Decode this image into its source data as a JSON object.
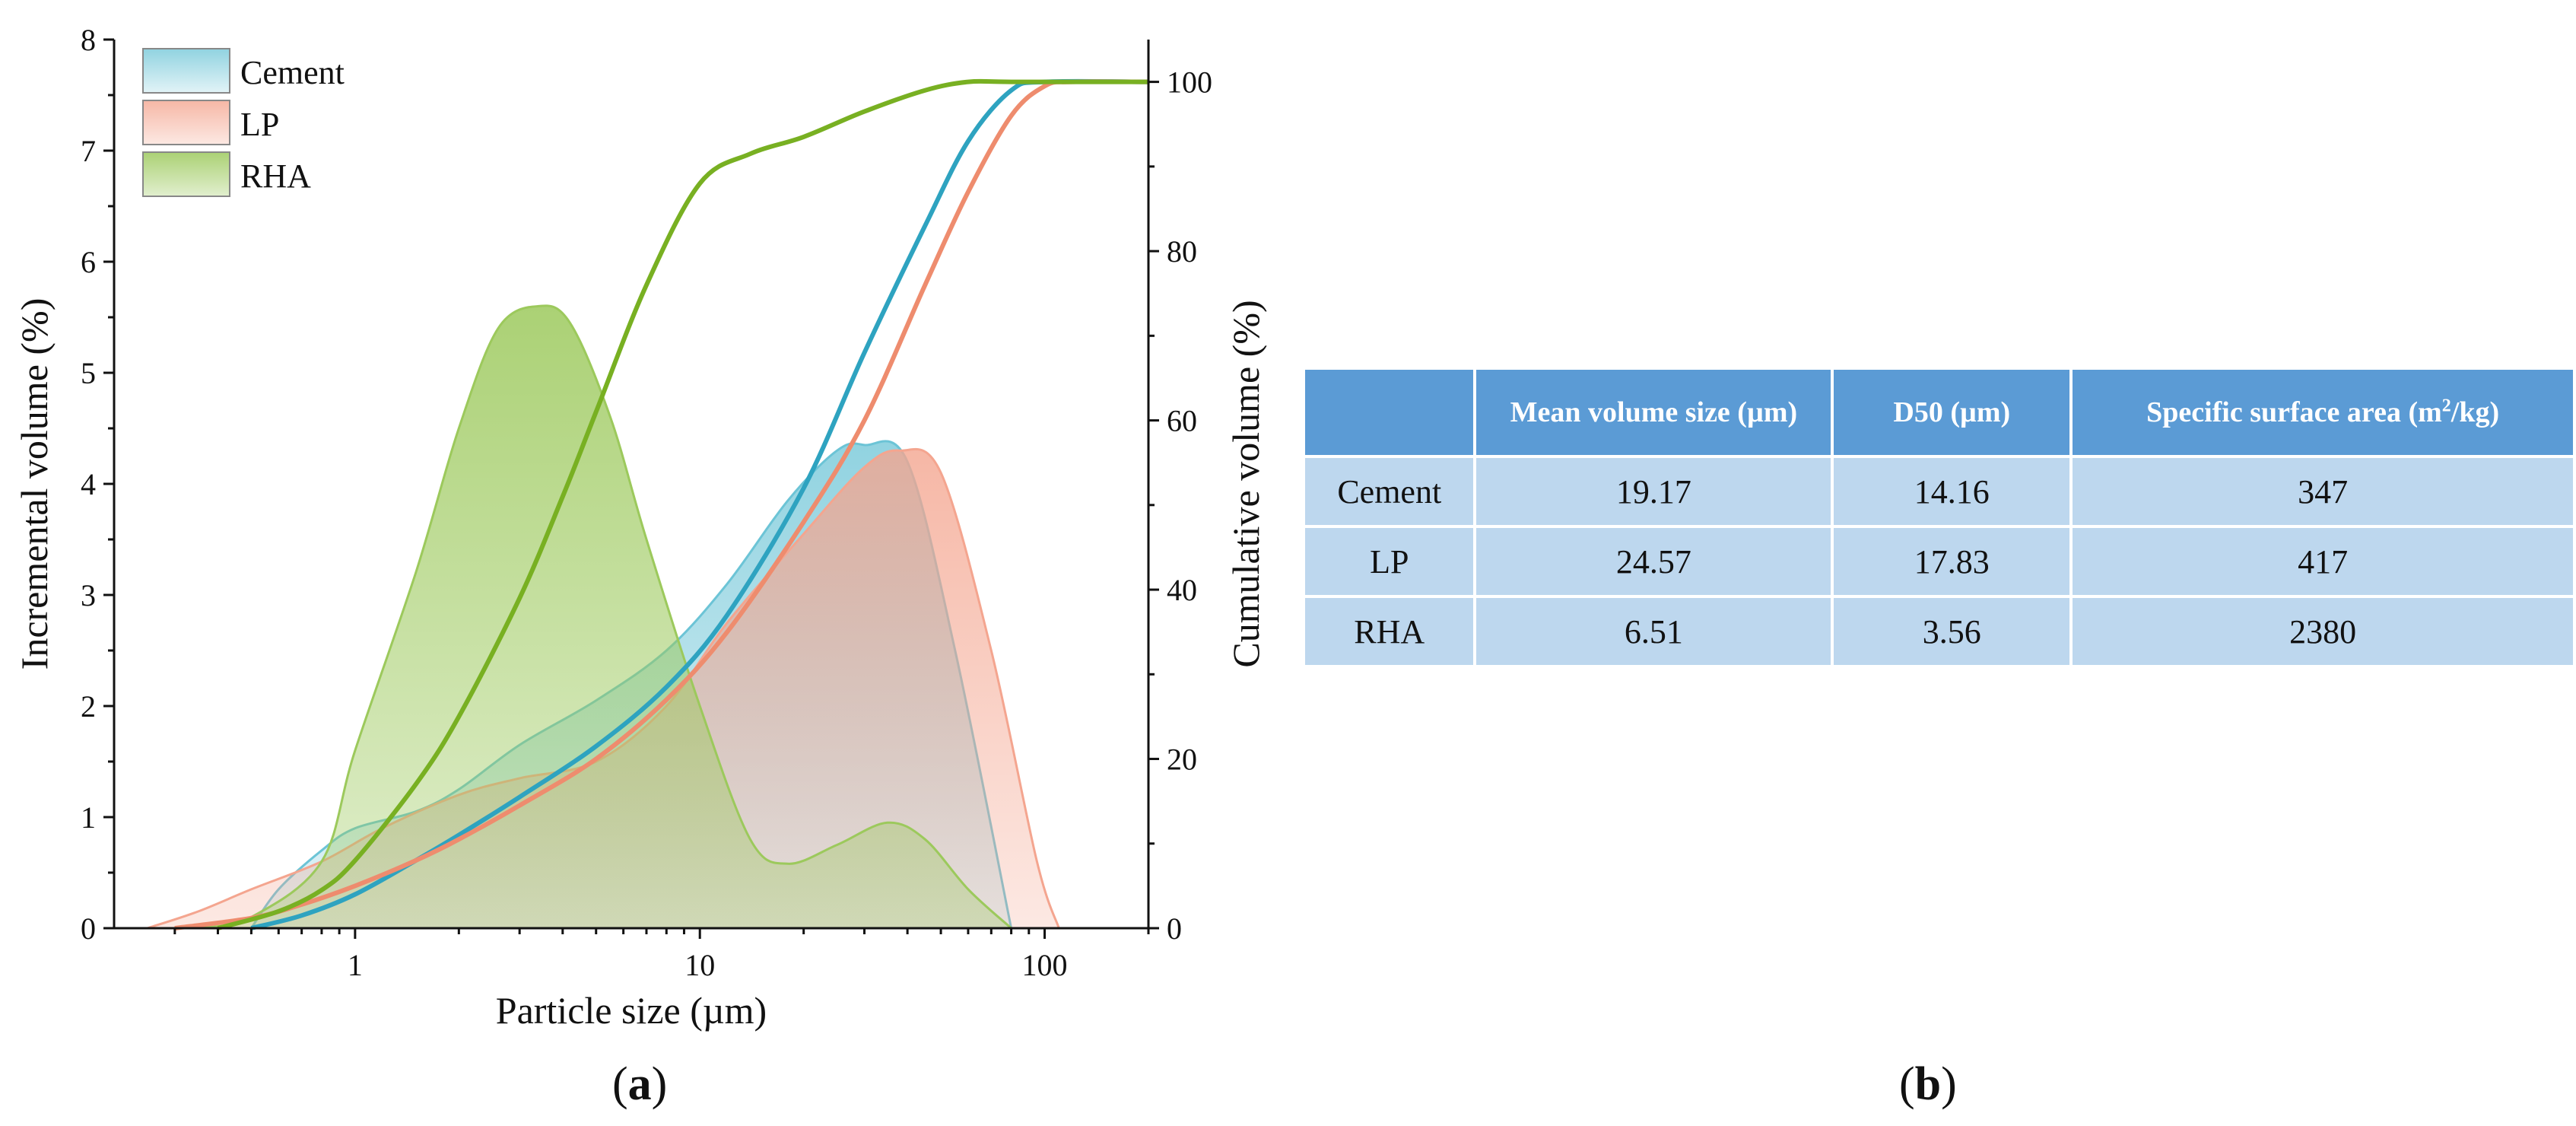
{
  "chart_data": {
    "type": "area+line",
    "xscale": "log",
    "xlabel": "Particle size (µm)",
    "ylabel": "Incremental volume (%)",
    "y2label": "Cumulative volume (%)",
    "xlim": [
      0.2,
      200
    ],
    "ylim": [
      0,
      8
    ],
    "y2lim": [
      0,
      105
    ],
    "xticks": [
      1,
      10,
      100
    ],
    "xtick_labels": [
      "1",
      "10",
      "100"
    ],
    "yticks": [
      0,
      1,
      2,
      3,
      4,
      5,
      6,
      7,
      8
    ],
    "ytick_labels": [
      "0",
      "1",
      "2",
      "3",
      "4",
      "5",
      "6",
      "7",
      "8"
    ],
    "y2ticks": [
      0,
      20,
      40,
      60,
      80,
      100
    ],
    "y2tick_labels": [
      "0",
      "20",
      "40",
      "60",
      "80",
      "100"
    ],
    "legend": [
      "Cement",
      "LP",
      "RHA"
    ],
    "legend_position": "top-left",
    "colors": {
      "Cement": {
        "fill": "#6cc4d6",
        "line": "#2ea3c0"
      },
      "LP": {
        "fill": "#f4a58f",
        "line": "#ee8c6e"
      },
      "RHA": {
        "fill": "#9cc95c",
        "line": "#78b022"
      }
    },
    "incremental": [
      {
        "name": "Cement",
        "x": [
          0.5,
          0.6,
          0.8,
          1,
          1.5,
          2,
          3,
          5,
          8,
          12,
          18,
          25,
          30,
          40,
          55,
          80
        ],
        "y": [
          0,
          0.35,
          0.7,
          0.9,
          1.05,
          1.25,
          1.65,
          2.05,
          2.5,
          3.1,
          3.85,
          4.3,
          4.35,
          4.2,
          2.5,
          0
        ]
      },
      {
        "name": "LP",
        "x": [
          0.25,
          0.35,
          0.5,
          0.8,
          1.2,
          2,
          3,
          5,
          8,
          12,
          20,
          30,
          38,
          50,
          70,
          95,
          110
        ],
        "y": [
          0,
          0.15,
          0.35,
          0.6,
          0.9,
          1.2,
          1.35,
          1.5,
          2.0,
          2.75,
          3.55,
          4.15,
          4.3,
          4.1,
          2.5,
          0.6,
          0
        ]
      },
      {
        "name": "RHA",
        "x": [
          0.35,
          0.5,
          0.8,
          1,
          1.5,
          2,
          2.6,
          3.4,
          4.2,
          5.5,
          7,
          10,
          14,
          18,
          25,
          35,
          45,
          60,
          80
        ],
        "y": [
          0,
          0.1,
          0.6,
          1.6,
          3.2,
          4.5,
          5.4,
          5.6,
          5.45,
          4.6,
          3.5,
          2.0,
          0.8,
          0.58,
          0.75,
          0.95,
          0.8,
          0.35,
          0
        ]
      }
    ],
    "cumulative": [
      {
        "name": "Cement",
        "x": [
          0.5,
          0.7,
          1,
          1.5,
          2,
          3,
          5,
          8,
          12,
          20,
          30,
          45,
          60,
          80,
          100,
          200
        ],
        "y": [
          0,
          1.5,
          4,
          8,
          11,
          15.5,
          21.5,
          28.5,
          37,
          52,
          68,
          83,
          93,
          99,
          100,
          100
        ]
      },
      {
        "name": "LP",
        "x": [
          0.3,
          0.5,
          0.7,
          1,
          1.5,
          2,
          3,
          5,
          8,
          12,
          20,
          30,
          45,
          60,
          80,
          100,
          120,
          200
        ],
        "y": [
          0,
          1.2,
          2.8,
          5,
          8,
          10.5,
          14.5,
          20,
          27,
          35,
          48,
          60,
          76,
          87,
          96,
          99.5,
          100,
          100
        ]
      },
      {
        "name": "RHA",
        "x": [
          0.4,
          0.6,
          0.8,
          1,
          1.5,
          2,
          3,
          4,
          5,
          7,
          10,
          14,
          20,
          30,
          45,
          60,
          80,
          200
        ],
        "y": [
          0,
          2,
          4.5,
          8,
          17,
          25,
          39,
          51,
          61,
          76,
          88,
          91.5,
          93.5,
          96.5,
          99,
          100,
          100,
          100
        ]
      }
    ]
  },
  "table": {
    "headers": [
      "",
      "Mean volume size (µm)",
      "D50 (µm)",
      "Specific surface area (m",
      "2",
      "/kg)"
    ],
    "rows": [
      {
        "material": "Cement",
        "mean": "19.17",
        "d50": "14.16",
        "ssa": "347"
      },
      {
        "material": "LP",
        "mean": "24.57",
        "d50": "17.83",
        "ssa": "417"
      },
      {
        "material": "RHA",
        "mean": "6.51",
        "d50": "3.56",
        "ssa": "2380"
      }
    ]
  },
  "labels": {
    "a_open": "(",
    "a_letter": "a",
    "a_close": ")",
    "b_open": "(",
    "b_letter": "b",
    "b_close": ")"
  }
}
